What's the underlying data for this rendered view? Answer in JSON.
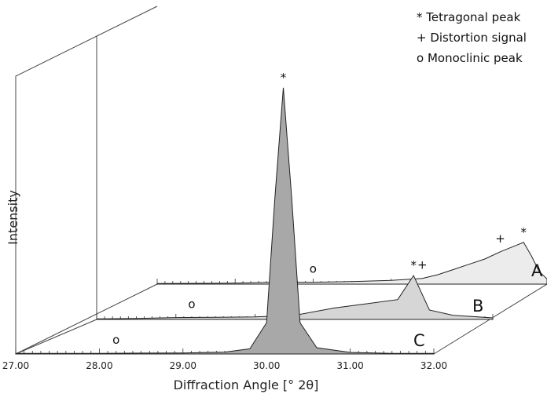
{
  "chart_data": {
    "type": "line",
    "style": "3d-waterfall",
    "xlabel": "Diffraction Angle [° 2θ]",
    "ylabel": "Intensity",
    "x_ticks": [
      "27.00",
      "28.00",
      "29.00",
      "30.00",
      "31.00",
      "32.00"
    ],
    "xlim": [
      27.0,
      32.0
    ],
    "legend": [
      "* Tetragonal peak",
      "+ Distortion signal",
      "o Monoclinic peak"
    ],
    "fill_colors": {
      "A": "#ececec",
      "B": "#d6d6d6",
      "C": "#a8a8a8"
    },
    "series": [
      {
        "name": "A",
        "x": [
          27.0,
          28.0,
          28.5,
          29.0,
          29.5,
          30.0,
          30.4,
          30.6,
          30.8,
          31.0,
          31.2,
          31.4,
          31.6,
          31.7,
          31.8,
          31.9,
          32.0
        ],
        "y": [
          0.5,
          1.0,
          1.8,
          1.8,
          2.5,
          3.5,
          5.5,
          9,
          14,
          19,
          24,
          31,
          37,
          40,
          27,
          12,
          5
        ],
        "markers": [
          {
            "symbol": "o",
            "x": 29.0
          },
          {
            "symbol": "+",
            "x": 30.4
          },
          {
            "symbol": "+",
            "x": 31.4
          },
          {
            "symbol": "*",
            "x": 31.7
          }
        ]
      },
      {
        "name": "B",
        "x": [
          27.0,
          27.5,
          28.0,
          28.5,
          29.0,
          29.5,
          30.0,
          30.4,
          30.8,
          31.0,
          31.2,
          31.5,
          32.0
        ],
        "y": [
          0.5,
          1.0,
          1.8,
          2.0,
          2.5,
          4.0,
          11,
          15,
          19,
          42,
          9,
          4,
          1.5
        ],
        "markers": [
          {
            "symbol": "o",
            "x": 28.2
          },
          {
            "symbol": "*",
            "x": 31.0
          }
        ]
      },
      {
        "name": "C",
        "x": [
          27.0,
          27.5,
          28.0,
          28.5,
          29.0,
          29.5,
          29.8,
          30.0,
          30.1,
          30.2,
          30.3,
          30.4,
          30.6,
          31.0,
          31.5,
          32.0
        ],
        "y": [
          0.5,
          0.5,
          0.5,
          0.8,
          1.0,
          1.8,
          5,
          30,
          150,
          255,
          150,
          30,
          6,
          1.5,
          0.5,
          0.5
        ],
        "markers": [
          {
            "symbol": "o",
            "x": 28.2
          },
          {
            "symbol": "*",
            "x": 30.2
          }
        ]
      }
    ]
  }
}
